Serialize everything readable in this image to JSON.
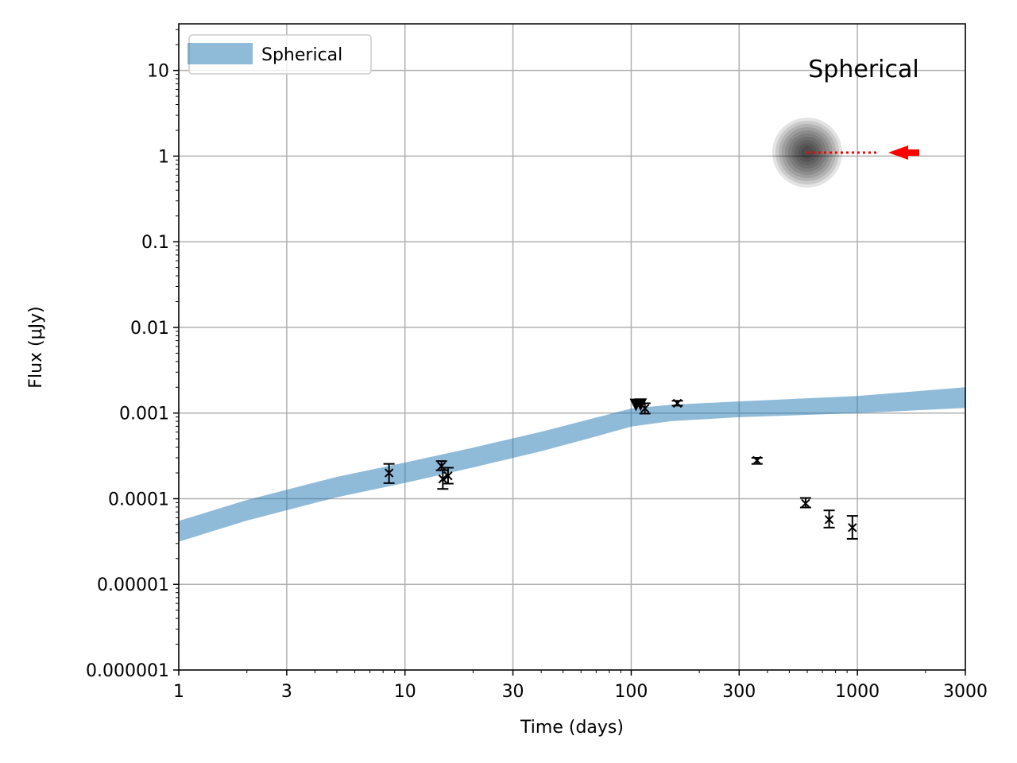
{
  "chart_data": {
    "type": "scatter",
    "title": "",
    "xlabel": "Time (days)",
    "ylabel": "Flux (μJy)",
    "xscale": "log",
    "yscale": "log",
    "xlim": [
      1,
      3000
    ],
    "ylim": [
      1e-06,
      35
    ],
    "grid": true,
    "legend_position": "top-left",
    "x_ticks": [
      1,
      3,
      10,
      30,
      100,
      300,
      1000,
      3000
    ],
    "x_tick_labels": [
      "1",
      "3",
      "10",
      "30",
      "100",
      "300",
      "1000",
      "3000"
    ],
    "y_ticks": [
      1e-06,
      1e-05,
      0.0001,
      0.001,
      0.01,
      0.1,
      1,
      10
    ],
    "y_tick_labels": [
      "0.000001",
      "0.00001",
      "0.0001",
      "0.001",
      "0.01",
      "0.1",
      "1",
      "10"
    ],
    "series": [
      {
        "name": "Spherical",
        "kind": "band",
        "color": "#1f77b4",
        "opacity": 0.5,
        "x": [
          1,
          2,
          5,
          10,
          20,
          40,
          70,
          100,
          150,
          300,
          1000,
          3000
        ],
        "y_low": [
          3.15e-05,
          5.55e-05,
          0.000104,
          0.000153,
          0.000232,
          0.000358,
          0.000534,
          0.000695,
          0.000805,
          0.000894,
          0.000995,
          0.00115
        ],
        "y_high": [
          5.5e-05,
          9.65e-05,
          0.00018,
          0.000264,
          0.000395,
          0.000605,
          0.000885,
          0.00113,
          0.00125,
          0.00137,
          0.00158,
          0.002
        ]
      },
      {
        "kind": "points",
        "marker": "x",
        "color": "#000000",
        "points": [
          {
            "x": 8.5,
            "y": 0.0002,
            "ylo": 0.000152,
            "yhi": 0.000255
          },
          {
            "x": 14.5,
            "y": 0.00024,
            "ylo": 0.000215,
            "yhi": 0.000275
          },
          {
            "x": 14.7,
            "y": 0.00017,
            "ylo": 0.00013,
            "yhi": 0.000215
          },
          {
            "x": 15.5,
            "y": 0.000185,
            "ylo": 0.00015,
            "yhi": 0.00023
          },
          {
            "x": 115,
            "y": 0.00113,
            "ylo": 0.000985,
            "yhi": 0.0013
          },
          {
            "x": 160,
            "y": 0.0013,
            "ylo": 0.00122,
            "yhi": 0.00139
          },
          {
            "x": 360,
            "y": 0.00028,
            "ylo": 0.000255,
            "yhi": 0.0003
          },
          {
            "x": 590,
            "y": 8.8e-05,
            "ylo": 7.9e-05,
            "yhi": 0.000102
          },
          {
            "x": 750,
            "y": 5.7e-05,
            "ylo": 4.6e-05,
            "yhi": 7.3e-05
          },
          {
            "x": 950,
            "y": 4.6e-05,
            "ylo": 3.4e-05,
            "yhi": 6.3e-05
          }
        ]
      },
      {
        "kind": "upper_limits",
        "marker": "triangle-down",
        "color": "#000000",
        "points": [
          {
            "x": 105,
            "y": 0.00124
          },
          {
            "x": 110,
            "y": 0.00125
          }
        ]
      }
    ],
    "inset": {
      "label": "Spherical",
      "source_icon": "spherical-source-icon",
      "arrow_icon": "observer-arrow-icon",
      "arrow_color": "#ff0000"
    }
  }
}
